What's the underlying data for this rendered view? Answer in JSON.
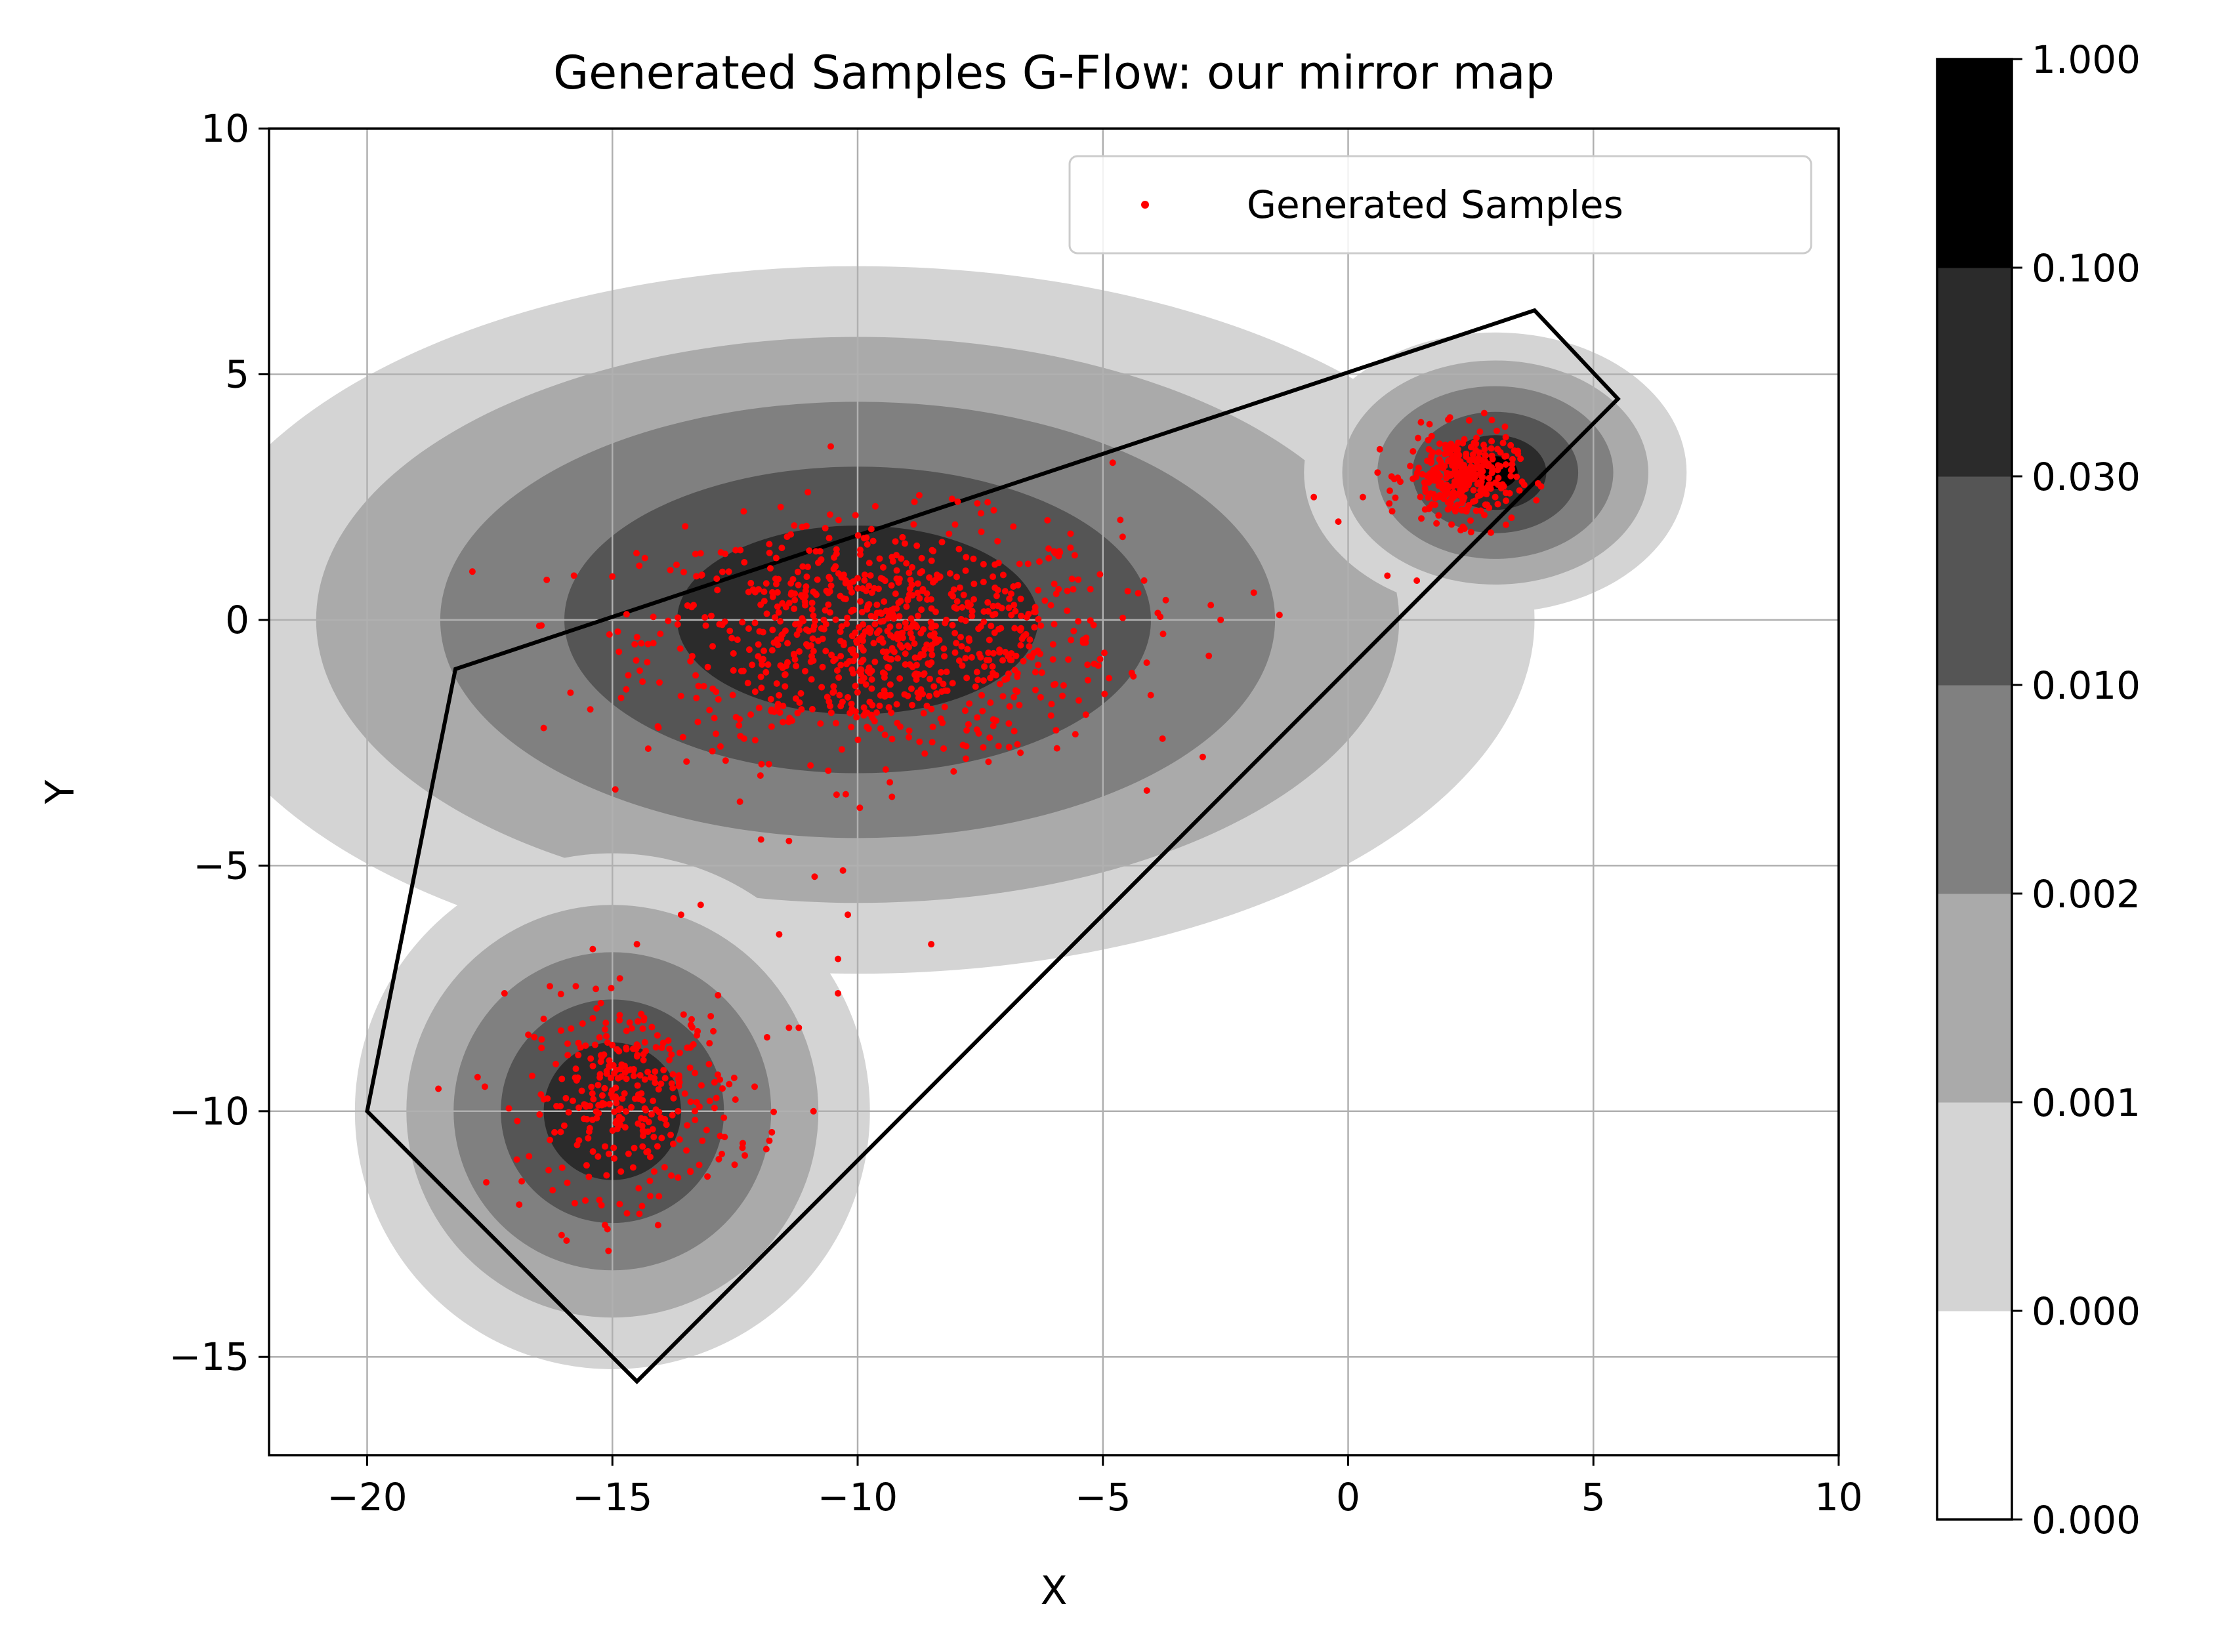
{
  "chart_data": {
    "type": "scatter",
    "title": "Generated Samples G-Flow: our mirror map",
    "xlabel": "X",
    "ylabel": "Y",
    "xlim": [
      -22,
      10
    ],
    "ylim": [
      -17,
      10
    ],
    "xticks": [
      -20,
      -15,
      -10,
      -5,
      0,
      5,
      10
    ],
    "yticks": [
      -15,
      -10,
      -5,
      0,
      5,
      10
    ],
    "xtick_labels": [
      "−20",
      "−15",
      "−10",
      "−5",
      "0",
      "5",
      "10"
    ],
    "ytick_labels": [
      "−15",
      "−10",
      "−5",
      "0",
      "5",
      "10"
    ],
    "grid": true,
    "legend": {
      "position": "top-right",
      "entries": [
        "Generated Samples"
      ]
    },
    "colors": {
      "samples": "#ff0000",
      "polygon": "#000000",
      "grid": "#b0b0b0",
      "contour_levels": [
        "#ffffff",
        "#d4d4d4",
        "#aaaaaa",
        "#808080",
        "#555555",
        "#2b2b2b",
        "#000000"
      ]
    },
    "polygon": [
      [
        -18.2,
        -1.0
      ],
      [
        3.8,
        6.3
      ],
      [
        5.5,
        4.5
      ],
      [
        -14.5,
        -15.5
      ],
      [
        -20.0,
        -10.0
      ]
    ],
    "density_components": [
      {
        "center": [
          -10.0,
          0.0
        ],
        "sigma": [
          4.6,
          2.4
        ],
        "weight": 0.5
      },
      {
        "center": [
          -15.0,
          -10.0
        ],
        "sigma": [
          1.75,
          1.75
        ],
        "weight": 0.3
      },
      {
        "center": [
          3.0,
          3.0
        ],
        "sigma": [
          1.3,
          0.95
        ],
        "weight": 0.2
      }
    ],
    "colorbar": {
      "tick_labels": [
        "0.000",
        "0.000",
        "0.001",
        "0.002",
        "0.010",
        "0.030",
        "0.100",
        "1.000"
      ]
    },
    "series": [
      {
        "name": "Generated Samples",
        "clusters": [
          {
            "center": [
              -9.5,
              -0.4
            ],
            "spread": [
              2.4,
              1.2
            ],
            "count": 900
          },
          {
            "center": [
              -14.6,
              -9.7
            ],
            "spread": [
              1.05,
              1.0
            ],
            "count": 320
          },
          {
            "center": [
              2.3,
              2.9
            ],
            "spread": [
              0.55,
              0.45
            ],
            "count": 320
          }
        ],
        "points": [
          [
            -16.4,
            -2.2
          ],
          [
            -4.8,
            3.2
          ],
          [
            -10.2,
            -6.0
          ],
          [
            -10.3,
            -5.1
          ],
          [
            -10.4,
            -6.9
          ],
          [
            -10.4,
            -7.6
          ],
          [
            -8.5,
            -6.6
          ],
          [
            -11.6,
            -6.4
          ],
          [
            -13.2,
            -5.8
          ],
          [
            -13.6,
            -6.0
          ],
          [
            -11.2,
            -8.3
          ],
          [
            -11.4,
            -8.3
          ],
          [
            -10.9,
            -10.0
          ],
          [
            -11.8,
            -10.6
          ],
          [
            -12.3,
            -10.9
          ],
          [
            -12.1,
            -9.5
          ],
          [
            -17.2,
            -7.6
          ],
          [
            -17.6,
            -9.5
          ],
          [
            -16.9,
            -11.9
          ],
          [
            -16.3,
            -11.2
          ],
          [
            -15.1,
            -12.4
          ],
          [
            -15.4,
            -6.7
          ],
          [
            -14.5,
            -6.6
          ],
          [
            -9.3,
            -3.6
          ],
          [
            -11.4,
            -4.5
          ],
          [
            -12.4,
            -3.7
          ],
          [
            -2.6,
            0.0
          ],
          [
            -1.4,
            0.1
          ],
          [
            -2.8,
            0.3
          ],
          [
            -0.7,
            2.5
          ],
          [
            -0.2,
            2.0
          ],
          [
            0.3,
            2.5
          ],
          [
            0.8,
            0.9
          ],
          [
            1.4,
            0.8
          ],
          [
            0.6,
            3.0
          ]
        ]
      }
    ]
  }
}
